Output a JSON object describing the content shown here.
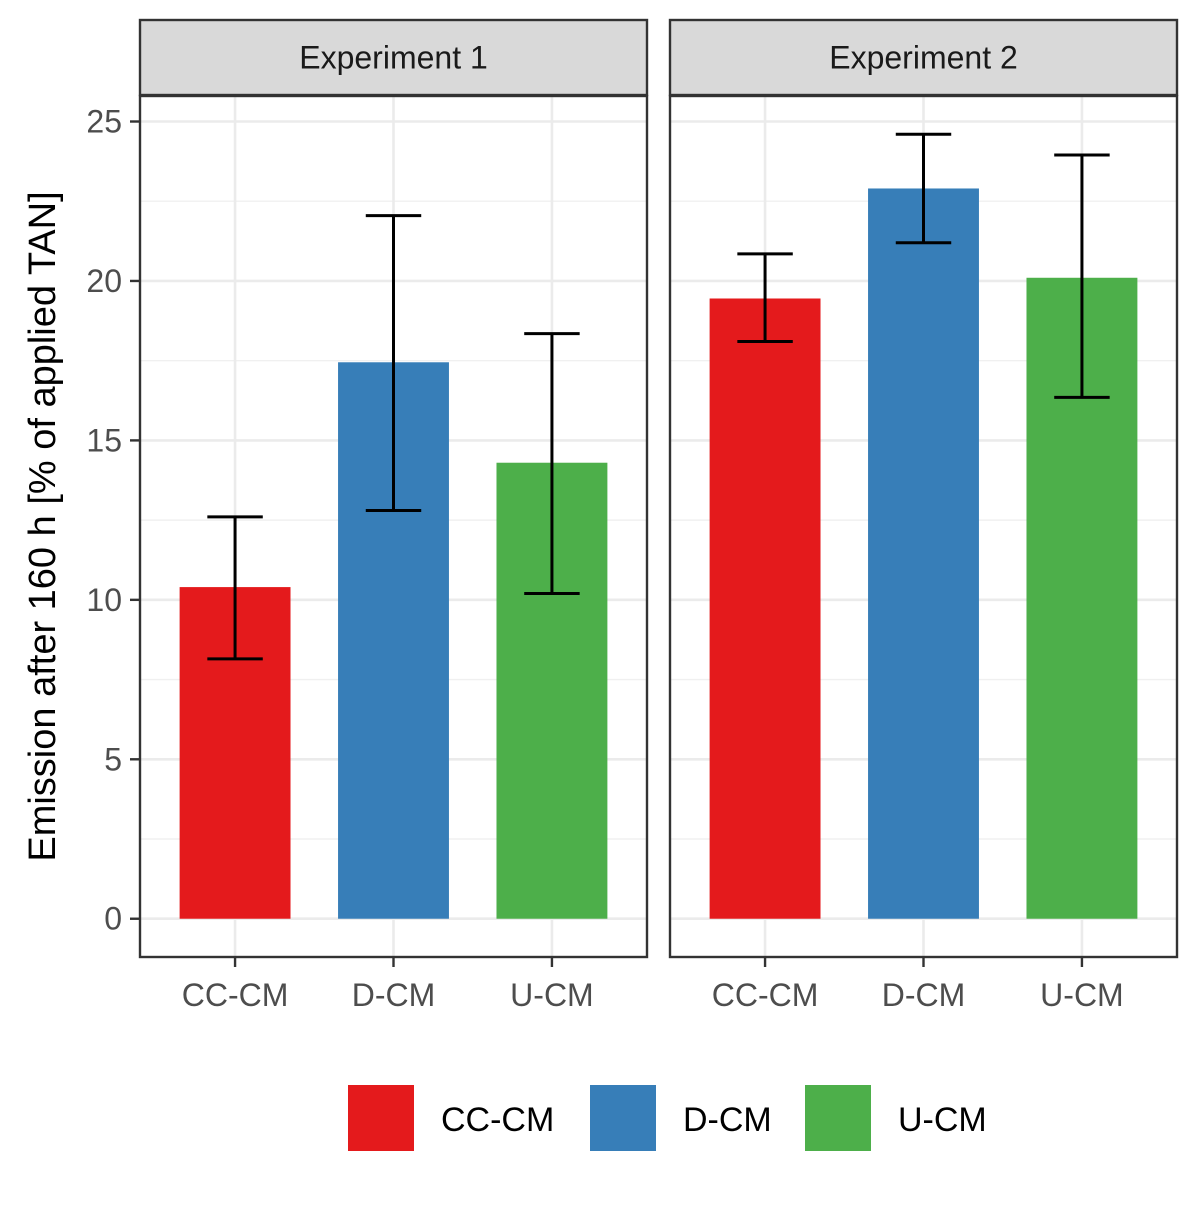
{
  "chart_data": {
    "type": "bar",
    "facets": [
      "Experiment 1",
      "Experiment 2"
    ],
    "categories": [
      "CC-CM",
      "D-CM",
      "U-CM"
    ],
    "colors": {
      "CC-CM": "#e41a1c",
      "D-CM": "#377eb8",
      "U-CM": "#4daf4a"
    },
    "panels": [
      {
        "name": "Experiment 1",
        "values": [
          10.4,
          17.45,
          14.3
        ],
        "error_low": [
          8.15,
          12.8,
          10.2
        ],
        "error_high": [
          12.6,
          22.05,
          18.35
        ]
      },
      {
        "name": "Experiment 2",
        "values": [
          19.45,
          22.9,
          20.1
        ],
        "error_low": [
          18.1,
          21.2,
          16.35
        ],
        "error_high": [
          20.85,
          24.6,
          23.95
        ]
      }
    ],
    "ylabel": "Emission after 160 h [% of applied TAN]",
    "xlabel": "",
    "ylim": [
      -1.2,
      25.8
    ],
    "yticks": [
      "0",
      "5",
      "10",
      "15",
      "20",
      "25"
    ],
    "grid": true,
    "legend": {
      "position": "bottom",
      "entries": [
        "CC-CM",
        "D-CM",
        "U-CM"
      ]
    }
  }
}
